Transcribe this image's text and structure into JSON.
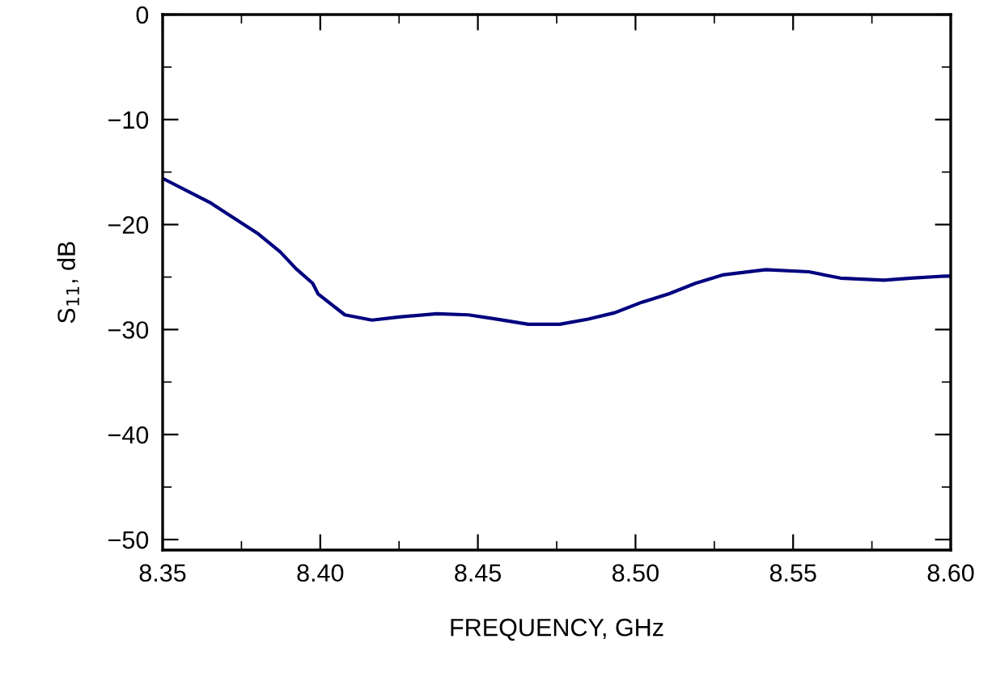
{
  "chart_data": {
    "type": "line",
    "xlabel": "FREQUENCY, GHz",
    "ylabel": "S$_{11}$, dB",
    "xlim": [
      8.35,
      8.6
    ],
    "ylim": [
      -51,
      0
    ],
    "xticks": [
      {
        "value": 8.35,
        "label": "8.35"
      },
      {
        "value": 8.375,
        "label": null
      },
      {
        "value": 8.4,
        "label": "8.40"
      },
      {
        "value": 8.425,
        "label": null
      },
      {
        "value": 8.45,
        "label": "8.45"
      },
      {
        "value": 8.475,
        "label": null
      },
      {
        "value": 8.5,
        "label": "8.50"
      },
      {
        "value": 8.525,
        "label": null
      },
      {
        "value": 8.55,
        "label": "8.55"
      },
      {
        "value": 8.575,
        "label": null
      },
      {
        "value": 8.6,
        "label": "8.60"
      }
    ],
    "yticks": [
      {
        "value": -50,
        "label": "−50"
      },
      {
        "value": -45,
        "label": null
      },
      {
        "value": -40,
        "label": "−40"
      },
      {
        "value": -35,
        "label": null
      },
      {
        "value": -30,
        "label": "−30"
      },
      {
        "value": -25,
        "label": null
      },
      {
        "value": -20,
        "label": "−20"
      },
      {
        "value": -15,
        "label": null
      },
      {
        "value": -10,
        "label": "−10"
      },
      {
        "value": -5,
        "label": null
      },
      0
    ],
    "grid": false,
    "line_style": "solid",
    "x": [
      8.35,
      8.365,
      8.3804,
      8.3873,
      8.3923,
      8.3976,
      8.3993,
      8.4078,
      8.4164,
      8.425,
      8.437,
      8.447,
      8.4557,
      8.466,
      8.476,
      8.485,
      8.4934,
      8.502,
      8.5106,
      8.519,
      8.5276,
      8.5413,
      8.555,
      8.565,
      8.5788,
      8.5873,
      8.5985,
      8.6
    ],
    "series": [
      {
        "color": "#00007f",
        "values": [
          -15.6,
          -17.9,
          -20.9,
          -22.6,
          -24.2,
          -25.6,
          -26.6,
          -28.6,
          -29.1,
          -28.8,
          -28.5,
          -28.6,
          -29.0,
          -29.5,
          -29.5,
          -29.0,
          -28.4,
          -27.4,
          -26.6,
          -25.6,
          -24.8,
          -24.3,
          -24.5,
          -25.1,
          -25.3,
          -25.1,
          -24.9,
          -24.9
        ]
      }
    ]
  }
}
